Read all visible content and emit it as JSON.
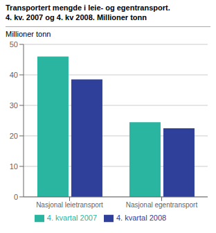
{
  "chart_data": {
    "type": "bar",
    "title": "Transportert mengde i leie- og egentransport.",
    "subtitle": "4. kv. 2007 og 4. kv 2008. Millioner tonn",
    "ylabel": "Millioner tonn",
    "categories": [
      "Nasjonal leietransport",
      "Nasjonal egentransport"
    ],
    "series": [
      {
        "name": "4. kvartal 2007",
        "color": "#2ab5a0",
        "values": [
          46,
          24.5
        ]
      },
      {
        "name": "4. kvartal 2008",
        "color": "#2e4099",
        "values": [
          38.5,
          22.5
        ]
      }
    ],
    "ylim": [
      0,
      50
    ],
    "yticks": [
      0,
      10,
      20,
      30,
      40,
      50
    ],
    "grid": true,
    "legend": "bottom"
  }
}
